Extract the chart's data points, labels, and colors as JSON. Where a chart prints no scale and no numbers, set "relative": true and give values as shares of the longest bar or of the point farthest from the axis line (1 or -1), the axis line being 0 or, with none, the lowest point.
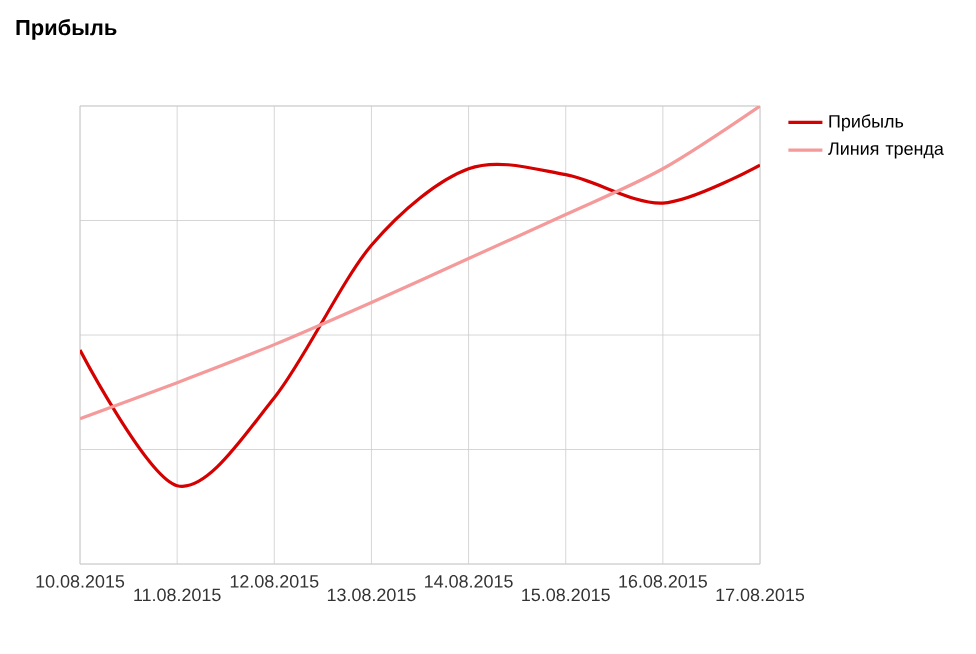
{
  "chart_data": {
    "type": "line",
    "title": "Прибыль",
    "relative": true,
    "grid": true,
    "legend": "right",
    "marker": "none",
    "categories": [
      "10.08.2015",
      "11.08.2015",
      "12.08.2015",
      "13.08.2015",
      "14.08.2015",
      "15.08.2015",
      "16.08.2015",
      "17.08.2015"
    ],
    "series": [
      {
        "name": "Прибыль",
        "color": "#d50000",
        "values": [
          0.467,
          0.171,
          0.363,
          0.696,
          0.863,
          0.85,
          0.788,
          0.871
        ]
      },
      {
        "name": "Линия тренда",
        "color": "#f59a9a",
        "values": [
          0.317,
          0.396,
          0.479,
          0.571,
          0.667,
          0.763,
          0.863,
          1
        ]
      }
    ]
  }
}
